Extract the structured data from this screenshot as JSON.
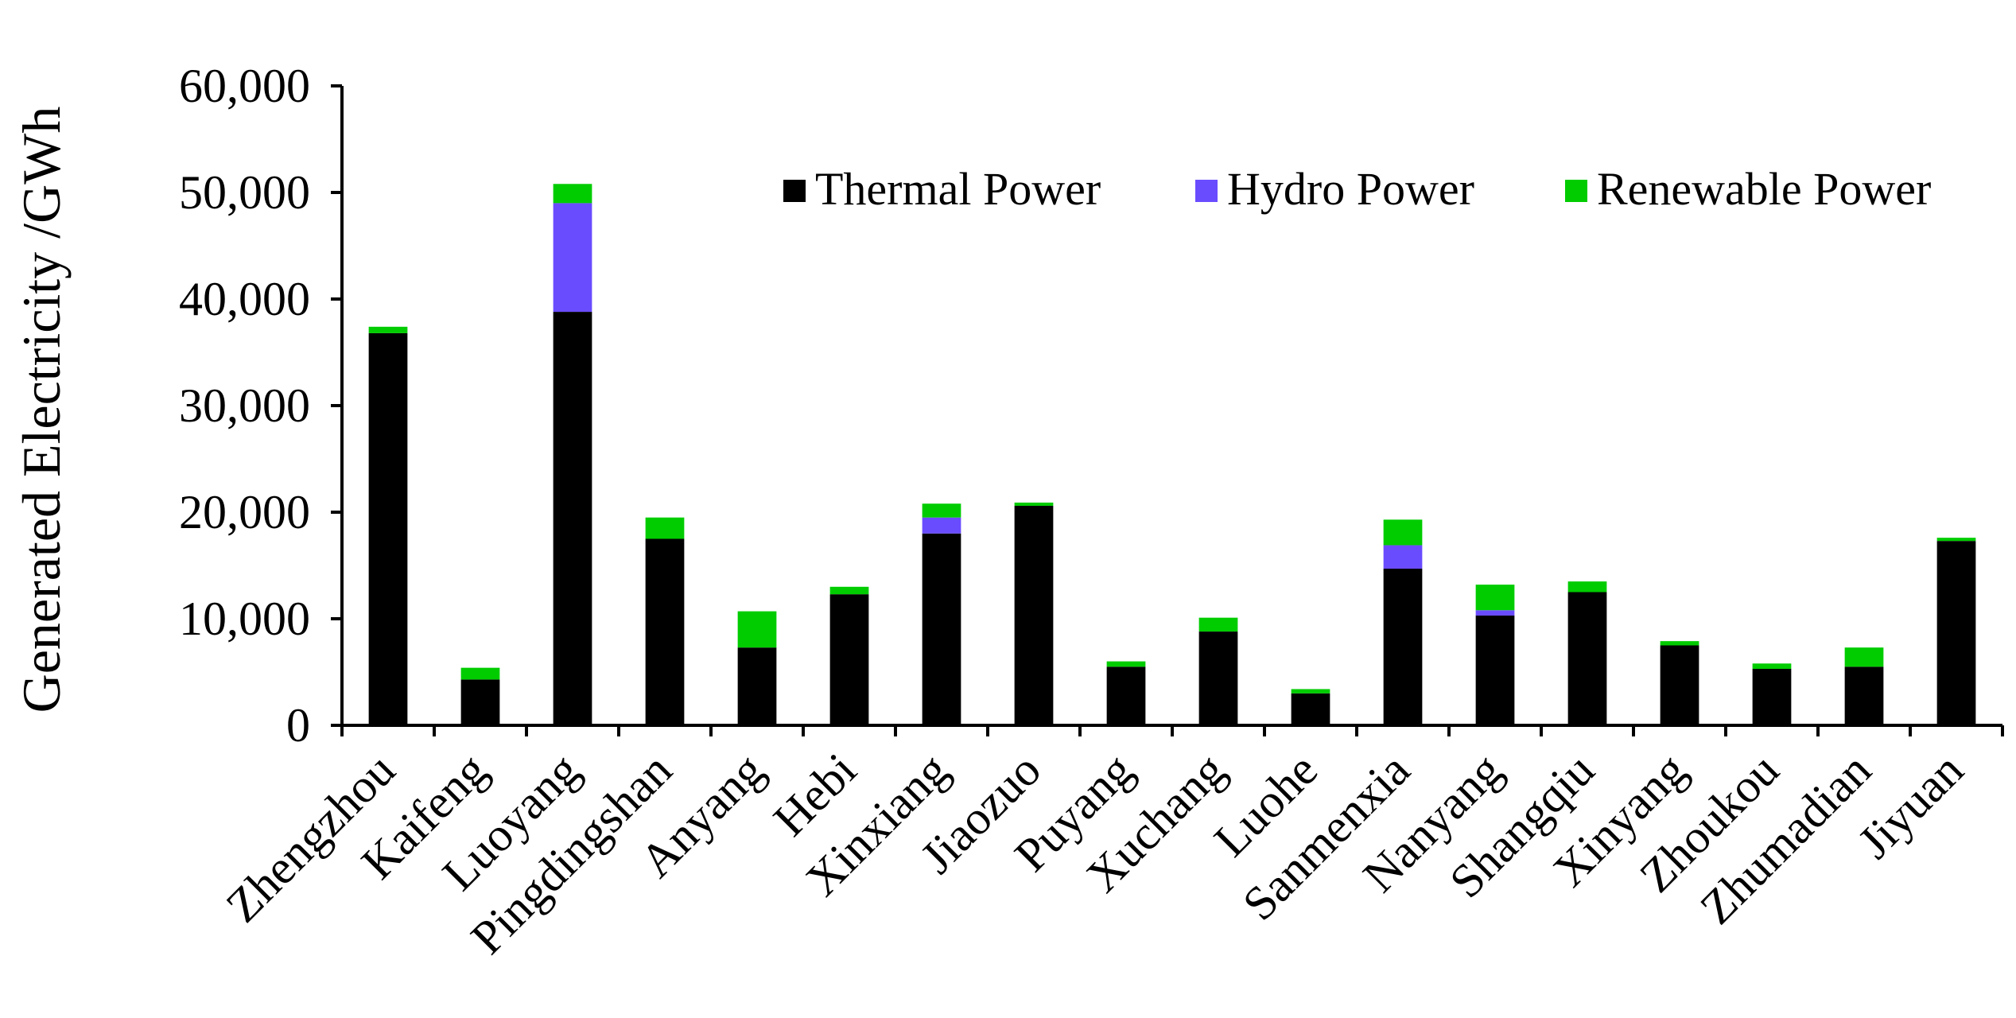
{
  "chart_data": {
    "type": "bar",
    "stacked": true,
    "ylabel": "Generated Electricity /GWh",
    "xlabel": "",
    "ylim": [
      0,
      60000
    ],
    "yticks": [
      0,
      10000,
      20000,
      30000,
      40000,
      50000,
      60000
    ],
    "ytick_labels": [
      "0",
      "10,000",
      "20,000",
      "30,000",
      "40,000",
      "50,000",
      "60,000"
    ],
    "grid": false,
    "legend_position": "top-right",
    "categories": [
      "Zhengzhou",
      "Kaifeng",
      "Luoyang",
      "Pingdingshan",
      "Anyang",
      "Hebi",
      "Xinxiang",
      "Jiaozuo",
      "Puyang",
      "Xuchang",
      "Luohe",
      "Sanmenxia",
      "Nanyang",
      "Shangqiu",
      "Xinyang",
      "Zhoukou",
      "Zhumadian",
      "Jiyuan"
    ],
    "series": [
      {
        "name": "Thermal Power",
        "color": "#000000",
        "values": [
          36800,
          4300,
          38800,
          17500,
          7300,
          12300,
          18000,
          20600,
          5500,
          8800,
          3000,
          14700,
          10300,
          12500,
          7500,
          5300,
          5500,
          17300
        ]
      },
      {
        "name": "Hydro Power",
        "color": "#6a4cff",
        "values": [
          0,
          0,
          10200,
          0,
          0,
          0,
          1500,
          0,
          0,
          0,
          0,
          2200,
          500,
          0,
          0,
          0,
          0,
          0
        ]
      },
      {
        "name": "Renewable Power",
        "color": "#00cc00",
        "values": [
          600,
          1100,
          1800,
          2000,
          3400,
          700,
          1300,
          300,
          500,
          1300,
          400,
          2400,
          2400,
          1000,
          400,
          500,
          1800,
          300
        ]
      }
    ]
  }
}
